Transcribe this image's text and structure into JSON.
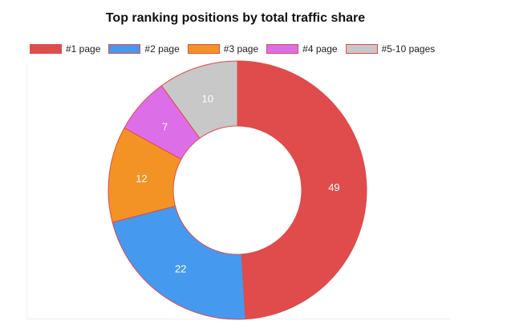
{
  "chart_data": {
    "type": "pie",
    "subtype": "doughnut",
    "title": "Top ranking positions by total traffic share",
    "legend_position": "top",
    "categories": [
      "#1 page",
      "#2 page",
      "#3 page",
      "#4 page",
      "#5-10 pages"
    ],
    "values": [
      49,
      22,
      12,
      7,
      10
    ],
    "colors": [
      "#e04b4b",
      "#4599ef",
      "#f39325",
      "#dc6ee8",
      "#c8c8c8"
    ],
    "border_color": "#e04b4b"
  }
}
